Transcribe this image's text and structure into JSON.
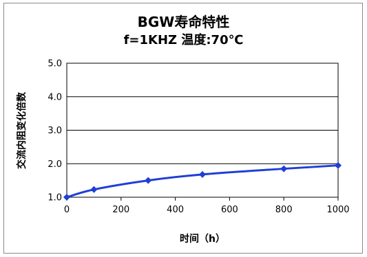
{
  "chart_data": {
    "type": "line",
    "title": "BGW寿命特性",
    "subtitle": "f=1KHZ  温度:70℃",
    "xlabel": "时间（h）",
    "ylabel": "交流内阻变化倍数",
    "x": [
      0,
      100,
      300,
      500,
      800,
      1000
    ],
    "series": [
      {
        "values": [
          1.0,
          1.23,
          1.5,
          1.68,
          1.85,
          1.95
        ]
      }
    ],
    "xlim": [
      0,
      1000
    ],
    "ylim": [
      1.0,
      5.0
    ],
    "xticks": [
      "0",
      "200",
      "400",
      "600",
      "800",
      "1000"
    ],
    "yticks": [
      "1.0",
      "2.0",
      "3.0",
      "4.0",
      "5.0"
    ],
    "grid": "horizontal",
    "legend": "none",
    "line_color": "#1f3fd6",
    "marker": "diamond"
  }
}
